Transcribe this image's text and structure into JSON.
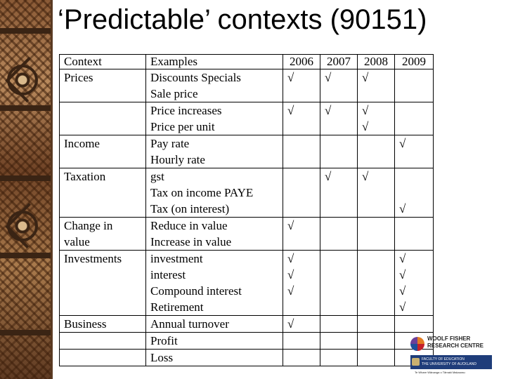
{
  "title": "‘Predictable’ contexts (90151)",
  "table": {
    "headers": [
      "Context",
      "Examples",
      "2006",
      "2007",
      "2008",
      "2009"
    ],
    "rows": [
      {
        "context": [
          "Prices"
        ],
        "examples": [
          "Discounts Specials",
          "Sale price"
        ],
        "ticks": [
          [
            "√",
            ""
          ],
          [
            "√",
            ""
          ],
          [
            "√",
            ""
          ],
          [
            "",
            ""
          ]
        ]
      },
      {
        "context": [
          ""
        ],
        "examples": [
          "Price increases",
          "Price per unit"
        ],
        "ticks": [
          [
            "√",
            ""
          ],
          [
            "√",
            ""
          ],
          [
            "√",
            "√"
          ],
          [
            "",
            ""
          ]
        ]
      },
      {
        "context": [
          "Income"
        ],
        "examples": [
          "Pay rate",
          "Hourly rate"
        ],
        "ticks": [
          [
            "",
            ""
          ],
          [
            "",
            ""
          ],
          [
            "",
            ""
          ],
          [
            "√",
            ""
          ]
        ]
      },
      {
        "context": [
          "Taxation"
        ],
        "examples": [
          "gst",
          "Tax on income PAYE",
          "Tax (on interest)"
        ],
        "ticks": [
          [
            "",
            "",
            ""
          ],
          [
            "√",
            "",
            ""
          ],
          [
            "√",
            "",
            ""
          ],
          [
            "",
            "",
            "√"
          ]
        ]
      },
      {
        "context": [
          "Change in",
          "value"
        ],
        "examples": [
          "Reduce in value",
          "Increase in value"
        ],
        "ticks": [
          [
            "√",
            ""
          ],
          [
            "",
            ""
          ],
          [
            "",
            ""
          ],
          [
            "",
            ""
          ]
        ]
      },
      {
        "context": [
          "Investments"
        ],
        "examples": [
          "investment",
          "interest",
          "Compound interest",
          "Retirement"
        ],
        "ticks": [
          [
            "√",
            "√",
            "√",
            ""
          ],
          [
            "",
            "",
            "",
            ""
          ],
          [
            "",
            "",
            "",
            ""
          ],
          [
            "√",
            "√",
            "√",
            "√"
          ]
        ]
      },
      {
        "context": [
          "Business"
        ],
        "examples": [
          "Annual turnover"
        ],
        "ticks": [
          [
            "√"
          ],
          [
            ""
          ],
          [
            ""
          ],
          [
            ""
          ]
        ]
      },
      {
        "context": [
          ""
        ],
        "examples": [
          "Profit"
        ],
        "ticks": [
          [
            ""
          ],
          [
            ""
          ],
          [
            ""
          ],
          [
            ""
          ]
        ]
      },
      {
        "context": [
          ""
        ],
        "examples": [
          "Loss"
        ],
        "ticks": [
          [
            ""
          ],
          [
            ""
          ],
          [
            ""
          ],
          [
            ""
          ]
        ]
      }
    ]
  },
  "logo": {
    "line1": "WOOLF FISHER",
    "line2": "RESEARCH CENTRE",
    "line3": "FACULTY OF EDUCATION",
    "line4": "THE UNIVERSITY OF AUCKLAND",
    "tagline": "Te Whare Wānanga o Tāmaki Makaurau"
  }
}
